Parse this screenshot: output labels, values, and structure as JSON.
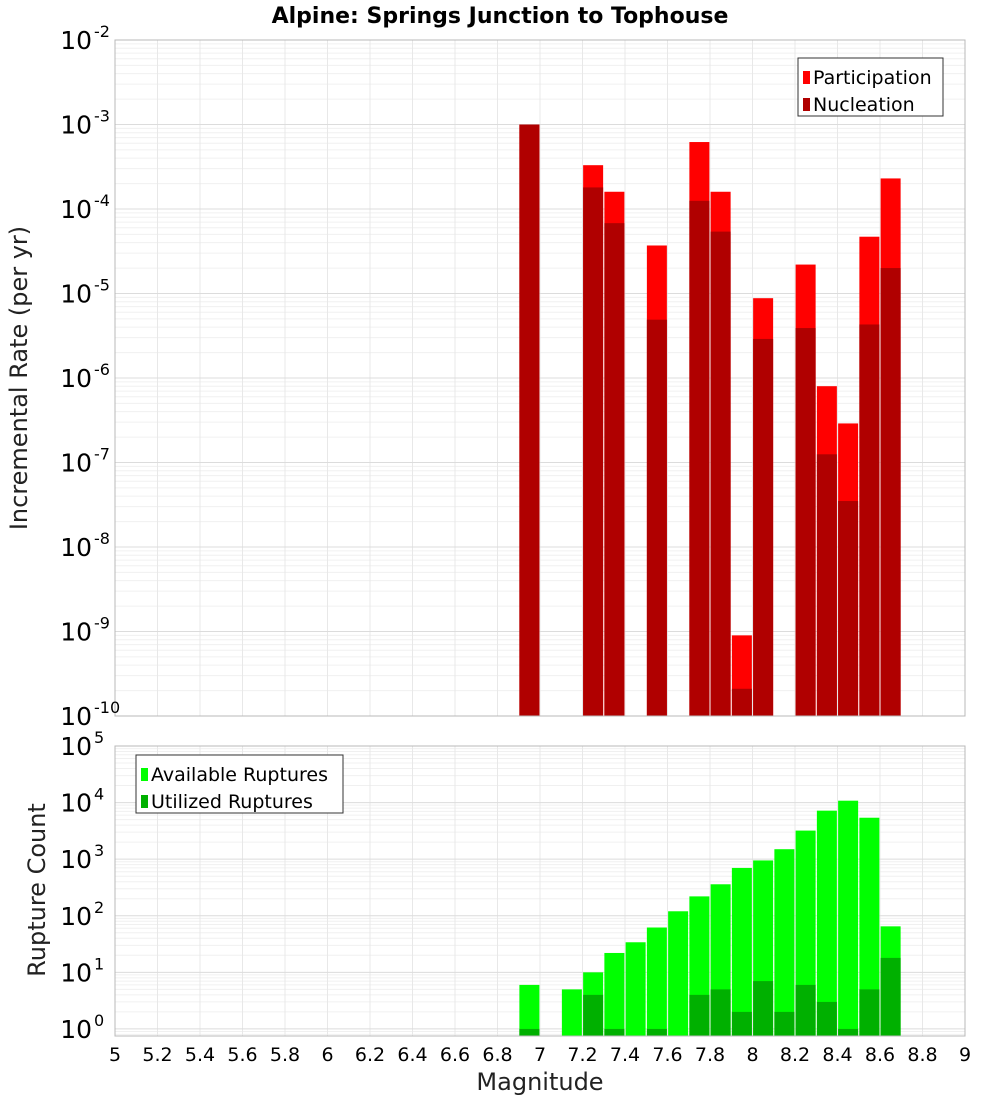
{
  "chart_data": [
    {
      "type": "bar",
      "title": "Alpine: Springs Junction to Tophouse",
      "xlabel": "",
      "ylabel": "Incremental Rate (per yr)",
      "xlim": [
        5,
        9
      ],
      "ylim": [
        1e-10,
        0.01
      ],
      "yscale": "log",
      "grid": true,
      "legend_position": "top-right",
      "x": [
        6.95,
        7.25,
        7.35,
        7.55,
        7.75,
        7.85,
        7.95,
        8.05,
        8.25,
        8.35,
        8.45,
        8.55,
        8.65
      ],
      "series": [
        {
          "name": "Participation",
          "color": "#ff0000",
          "values": [
            0.001,
            0.00033,
            0.00016,
            3.7e-05,
            0.00062,
            0.00016,
            9e-10,
            8.8e-06,
            2.2e-05,
            8e-07,
            2.9e-07,
            4.7e-05,
            0.00023
          ]
        },
        {
          "name": "Nucleation",
          "color": "#b00000",
          "values": [
            0.001,
            0.00018,
            6.8e-05,
            4.9e-06,
            0.000125,
            5.4e-05,
            2.1e-10,
            2.9e-06,
            3.9e-06,
            1.25e-07,
            3.5e-08,
            4.3e-06,
            2e-05
          ]
        }
      ]
    },
    {
      "type": "bar",
      "title": "",
      "xlabel": "Magnitude",
      "ylabel": "Rupture Count",
      "xlim": [
        5,
        9
      ],
      "ylim": [
        0.75,
        100000.0
      ],
      "yscale": "log",
      "grid": true,
      "legend_position": "top-left",
      "x_ticks": [
        "5",
        "5.2",
        "5.4",
        "5.6",
        "5.8",
        "6",
        "6.2",
        "6.4",
        "6.6",
        "6.8",
        "7",
        "7.2",
        "7.4",
        "7.6",
        "7.8",
        "8",
        "8.2",
        "8.4",
        "8.6",
        "8.8",
        "9"
      ],
      "x": [
        6.95,
        7.15,
        7.25,
        7.35,
        7.45,
        7.55,
        7.65,
        7.75,
        7.85,
        7.95,
        8.05,
        8.15,
        8.25,
        8.35,
        8.45,
        8.55,
        8.65
      ],
      "series": [
        {
          "name": "Available Ruptures",
          "color": "#00ff00",
          "values": [
            6,
            5,
            10,
            22,
            34,
            62,
            120,
            220,
            360,
            700,
            950,
            1500,
            3200,
            7200,
            10800,
            5400,
            65
          ]
        },
        {
          "name": "Utilized Ruptures",
          "color": "#00b000",
          "values": [
            1,
            0,
            4,
            1,
            0,
            1,
            0,
            4,
            5,
            2,
            7,
            2,
            6,
            3,
            1,
            5,
            18
          ]
        }
      ]
    }
  ]
}
